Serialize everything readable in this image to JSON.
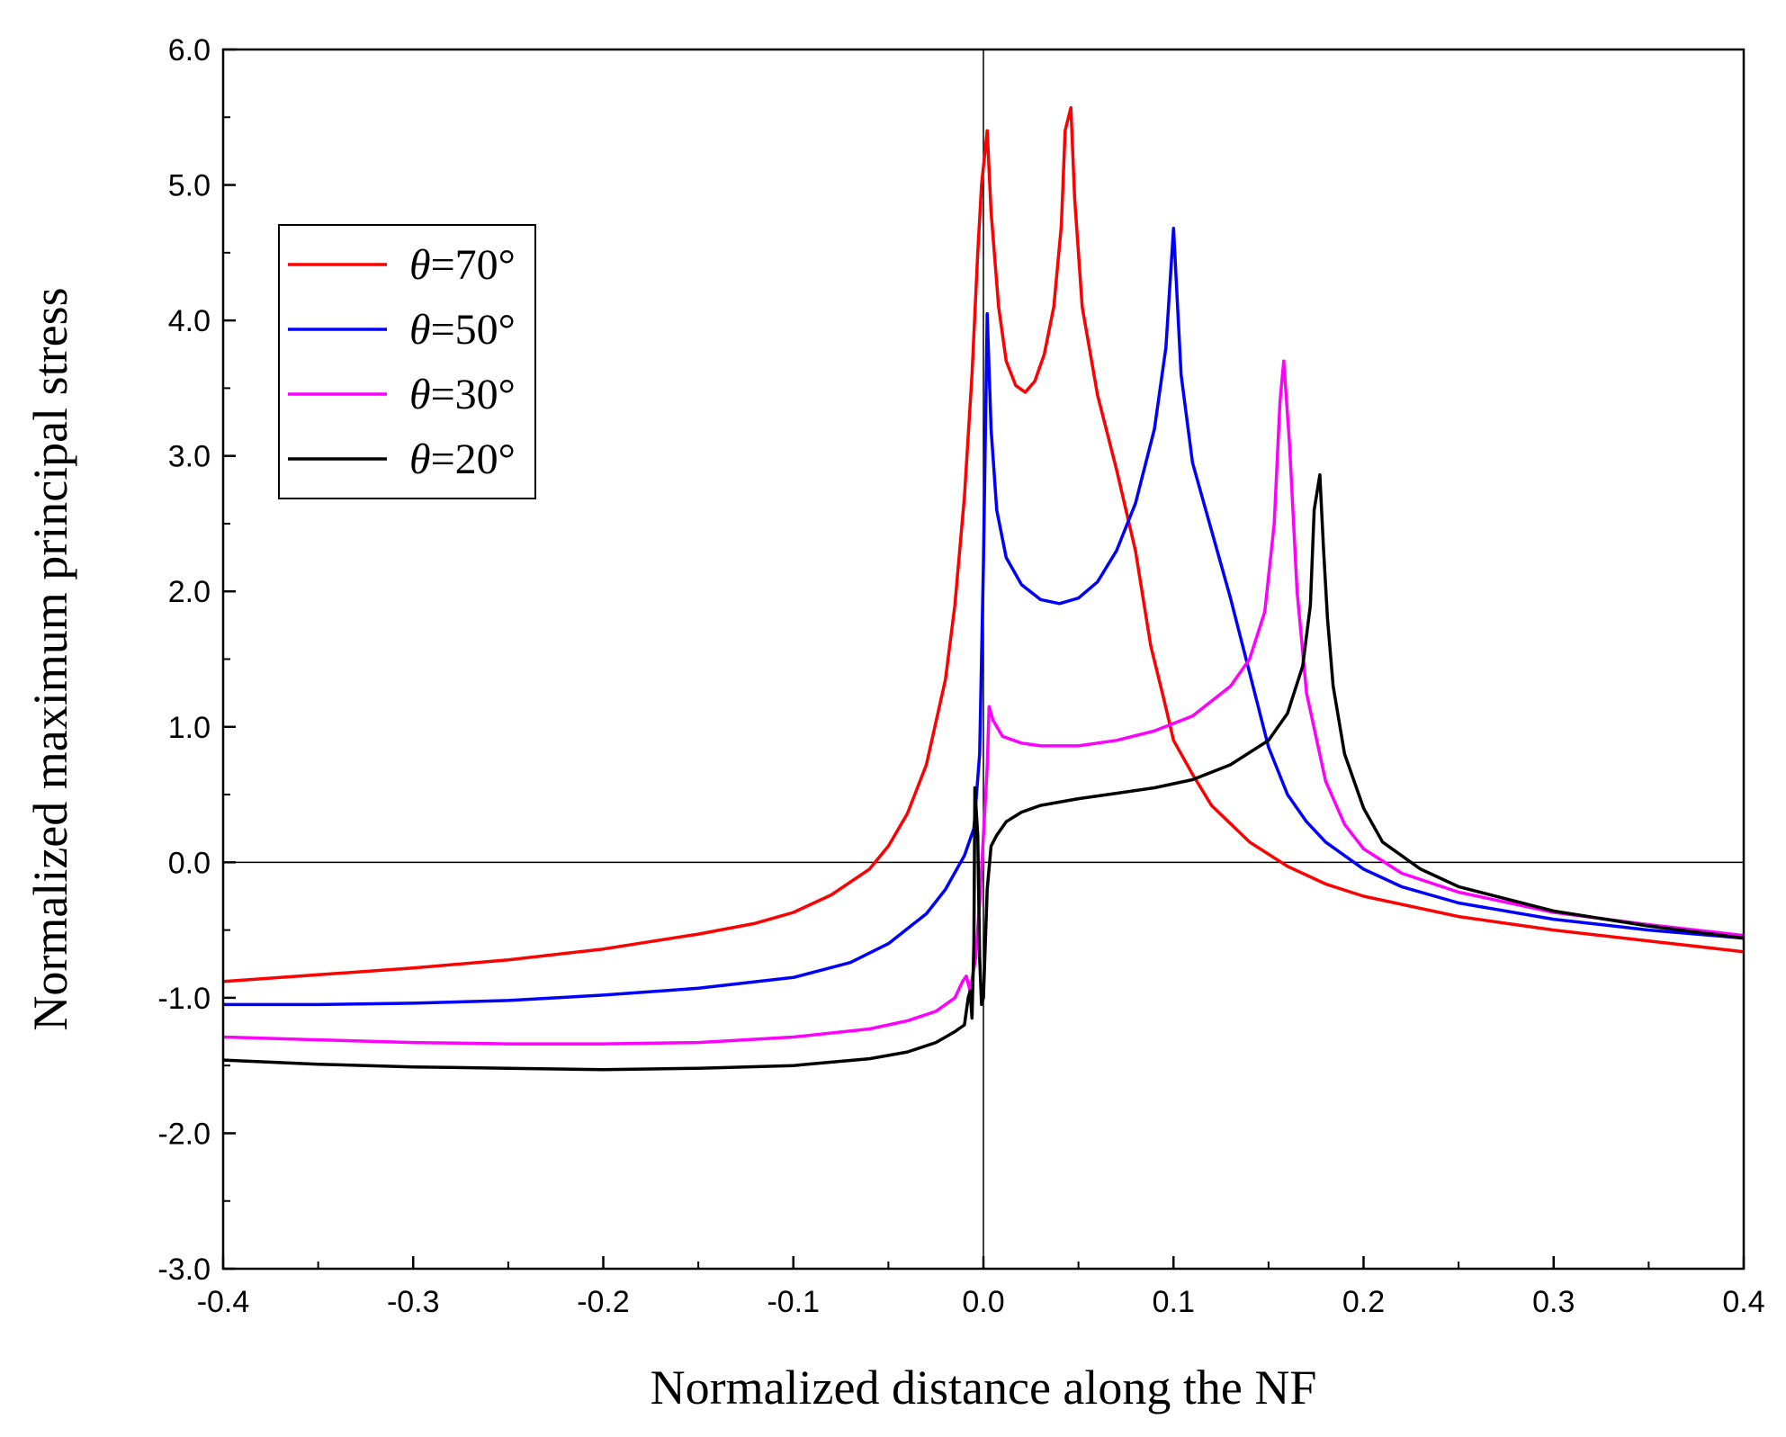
{
  "chart_data": {
    "type": "line",
    "title": "",
    "xlabel": "Normalized distance along the NF",
    "ylabel": "Normalized maximum principal stress",
    "xlim": [
      -0.4,
      0.4
    ],
    "ylim": [
      -3.0,
      6.0
    ],
    "x_ticks": [
      -0.4,
      -0.3,
      -0.2,
      -0.1,
      0.0,
      0.1,
      0.2,
      0.3,
      0.4
    ],
    "x_tick_labels": [
      "-0.4",
      "-0.3",
      "-0.2",
      "-0.1",
      "0.0",
      "0.1",
      "0.2",
      "0.3",
      "0.4"
    ],
    "y_ticks": [
      -3.0,
      -2.0,
      -1.0,
      0.0,
      1.0,
      2.0,
      3.0,
      4.0,
      5.0,
      6.0
    ],
    "y_tick_labels": [
      "-3.0",
      "-2.0",
      "-1.0",
      "0.0",
      "1.0",
      "2.0",
      "3.0",
      "4.0",
      "5.0",
      "6.0"
    ],
    "reference_lines": {
      "x": 0.0,
      "y": 0.0
    },
    "legend_position": "upper-left",
    "series": [
      {
        "name": "θ=70°",
        "symbol": "θ",
        "suffix": "=70°",
        "color": "#ff0000",
        "points": [
          [
            -0.4,
            -0.88
          ],
          [
            -0.35,
            -0.83
          ],
          [
            -0.3,
            -0.78
          ],
          [
            -0.25,
            -0.72
          ],
          [
            -0.2,
            -0.64
          ],
          [
            -0.15,
            -0.53
          ],
          [
            -0.12,
            -0.45
          ],
          [
            -0.1,
            -0.37
          ],
          [
            -0.08,
            -0.24
          ],
          [
            -0.06,
            -0.05
          ],
          [
            -0.05,
            0.12
          ],
          [
            -0.04,
            0.36
          ],
          [
            -0.03,
            0.72
          ],
          [
            -0.02,
            1.35
          ],
          [
            -0.015,
            1.9
          ],
          [
            -0.01,
            2.7
          ],
          [
            -0.006,
            3.6
          ],
          [
            -0.003,
            4.5
          ],
          [
            -0.001,
            5.0
          ],
          [
            0.002,
            5.4
          ],
          [
            0.004,
            4.8
          ],
          [
            0.008,
            4.1
          ],
          [
            0.012,
            3.7
          ],
          [
            0.017,
            3.52
          ],
          [
            0.022,
            3.47
          ],
          [
            0.027,
            3.55
          ],
          [
            0.032,
            3.75
          ],
          [
            0.037,
            4.1
          ],
          [
            0.041,
            4.7
          ],
          [
            0.043,
            5.4
          ],
          [
            0.046,
            5.57
          ],
          [
            0.048,
            4.9
          ],
          [
            0.052,
            4.1
          ],
          [
            0.06,
            3.45
          ],
          [
            0.07,
            2.9
          ],
          [
            0.08,
            2.3
          ],
          [
            0.088,
            1.6
          ],
          [
            0.095,
            1.2
          ],
          [
            0.1,
            0.9
          ],
          [
            0.11,
            0.65
          ],
          [
            0.12,
            0.42
          ],
          [
            0.14,
            0.15
          ],
          [
            0.16,
            -0.03
          ],
          [
            0.18,
            -0.16
          ],
          [
            0.2,
            -0.25
          ],
          [
            0.25,
            -0.4
          ],
          [
            0.3,
            -0.5
          ],
          [
            0.35,
            -0.58
          ],
          [
            0.4,
            -0.66
          ]
        ]
      },
      {
        "name": "θ=50°",
        "symbol": "θ",
        "suffix": "=50°",
        "color": "#0000ff",
        "points": [
          [
            -0.4,
            -1.05
          ],
          [
            -0.35,
            -1.05
          ],
          [
            -0.3,
            -1.04
          ],
          [
            -0.25,
            -1.02
          ],
          [
            -0.2,
            -0.98
          ],
          [
            -0.15,
            -0.93
          ],
          [
            -0.1,
            -0.85
          ],
          [
            -0.07,
            -0.74
          ],
          [
            -0.05,
            -0.6
          ],
          [
            -0.03,
            -0.38
          ],
          [
            -0.02,
            -0.2
          ],
          [
            -0.01,
            0.05
          ],
          [
            -0.005,
            0.25
          ],
          [
            -0.002,
            0.8
          ],
          [
            0.0,
            2.2
          ],
          [
            0.002,
            4.05
          ],
          [
            0.004,
            3.2
          ],
          [
            0.007,
            2.6
          ],
          [
            0.012,
            2.25
          ],
          [
            0.02,
            2.05
          ],
          [
            0.03,
            1.94
          ],
          [
            0.04,
            1.91
          ],
          [
            0.05,
            1.95
          ],
          [
            0.06,
            2.07
          ],
          [
            0.07,
            2.3
          ],
          [
            0.08,
            2.65
          ],
          [
            0.09,
            3.2
          ],
          [
            0.096,
            3.8
          ],
          [
            0.1,
            4.68
          ],
          [
            0.104,
            3.6
          ],
          [
            0.11,
            2.95
          ],
          [
            0.12,
            2.45
          ],
          [
            0.13,
            1.95
          ],
          [
            0.14,
            1.4
          ],
          [
            0.15,
            0.85
          ],
          [
            0.16,
            0.5
          ],
          [
            0.17,
            0.3
          ],
          [
            0.18,
            0.15
          ],
          [
            0.2,
            -0.05
          ],
          [
            0.22,
            -0.18
          ],
          [
            0.25,
            -0.3
          ],
          [
            0.3,
            -0.42
          ],
          [
            0.35,
            -0.5
          ],
          [
            0.4,
            -0.56
          ]
        ]
      },
      {
        "name": "θ=30°",
        "symbol": "θ",
        "suffix": "=30°",
        "color": "#ff00ff",
        "points": [
          [
            -0.4,
            -1.29
          ],
          [
            -0.35,
            -1.31
          ],
          [
            -0.3,
            -1.33
          ],
          [
            -0.25,
            -1.34
          ],
          [
            -0.2,
            -1.34
          ],
          [
            -0.15,
            -1.33
          ],
          [
            -0.1,
            -1.29
          ],
          [
            -0.06,
            -1.23
          ],
          [
            -0.04,
            -1.17
          ],
          [
            -0.025,
            -1.1
          ],
          [
            -0.015,
            -1.0
          ],
          [
            -0.011,
            -0.88
          ],
          [
            -0.009,
            -0.84
          ],
          [
            -0.007,
            -0.95
          ],
          [
            -0.004,
            -0.7
          ],
          [
            -0.002,
            -0.3
          ],
          [
            0.0,
            0.2
          ],
          [
            0.002,
            0.7
          ],
          [
            0.003,
            1.15
          ],
          [
            0.005,
            1.05
          ],
          [
            0.01,
            0.93
          ],
          [
            0.02,
            0.88
          ],
          [
            0.03,
            0.86
          ],
          [
            0.05,
            0.86
          ],
          [
            0.07,
            0.9
          ],
          [
            0.09,
            0.97
          ],
          [
            0.11,
            1.08
          ],
          [
            0.13,
            1.3
          ],
          [
            0.14,
            1.5
          ],
          [
            0.148,
            1.85
          ],
          [
            0.153,
            2.5
          ],
          [
            0.156,
            3.4
          ],
          [
            0.158,
            3.7
          ],
          [
            0.161,
            3.1
          ],
          [
            0.165,
            2.0
          ],
          [
            0.17,
            1.25
          ],
          [
            0.18,
            0.6
          ],
          [
            0.19,
            0.28
          ],
          [
            0.2,
            0.1
          ],
          [
            0.22,
            -0.08
          ],
          [
            0.25,
            -0.22
          ],
          [
            0.3,
            -0.37
          ],
          [
            0.35,
            -0.46
          ],
          [
            0.4,
            -0.54
          ]
        ]
      },
      {
        "name": "θ=20°",
        "symbol": "θ",
        "suffix": "=20°",
        "color": "#000000",
        "points": [
          [
            -0.4,
            -1.46
          ],
          [
            -0.35,
            -1.49
          ],
          [
            -0.3,
            -1.51
          ],
          [
            -0.25,
            -1.52
          ],
          [
            -0.2,
            -1.53
          ],
          [
            -0.15,
            -1.52
          ],
          [
            -0.1,
            -1.5
          ],
          [
            -0.06,
            -1.45
          ],
          [
            -0.04,
            -1.4
          ],
          [
            -0.025,
            -1.33
          ],
          [
            -0.015,
            -1.25
          ],
          [
            -0.012,
            -1.22
          ],
          [
            -0.01,
            -1.2
          ],
          [
            -0.008,
            -1.0
          ],
          [
            -0.007,
            -0.95
          ],
          [
            -0.006,
            -1.15
          ],
          [
            -0.005,
            -0.6
          ],
          [
            -0.0045,
            0.55
          ],
          [
            -0.003,
            0.2
          ],
          [
            -0.002,
            -0.7
          ],
          [
            -0.001,
            -1.05
          ],
          [
            0.0,
            -1.0
          ],
          [
            0.002,
            -0.2
          ],
          [
            0.004,
            0.12
          ],
          [
            0.007,
            0.2
          ],
          [
            0.012,
            0.3
          ],
          [
            0.02,
            0.37
          ],
          [
            0.03,
            0.42
          ],
          [
            0.05,
            0.47
          ],
          [
            0.07,
            0.51
          ],
          [
            0.09,
            0.55
          ],
          [
            0.11,
            0.61
          ],
          [
            0.13,
            0.72
          ],
          [
            0.15,
            0.9
          ],
          [
            0.16,
            1.1
          ],
          [
            0.168,
            1.45
          ],
          [
            0.172,
            1.9
          ],
          [
            0.174,
            2.6
          ],
          [
            0.177,
            2.86
          ],
          [
            0.179,
            2.3
          ],
          [
            0.181,
            1.8
          ],
          [
            0.184,
            1.3
          ],
          [
            0.19,
            0.8
          ],
          [
            0.2,
            0.4
          ],
          [
            0.21,
            0.15
          ],
          [
            0.23,
            -0.05
          ],
          [
            0.25,
            -0.18
          ],
          [
            0.3,
            -0.36
          ],
          [
            0.35,
            -0.47
          ],
          [
            0.4,
            -0.56
          ]
        ]
      }
    ]
  }
}
